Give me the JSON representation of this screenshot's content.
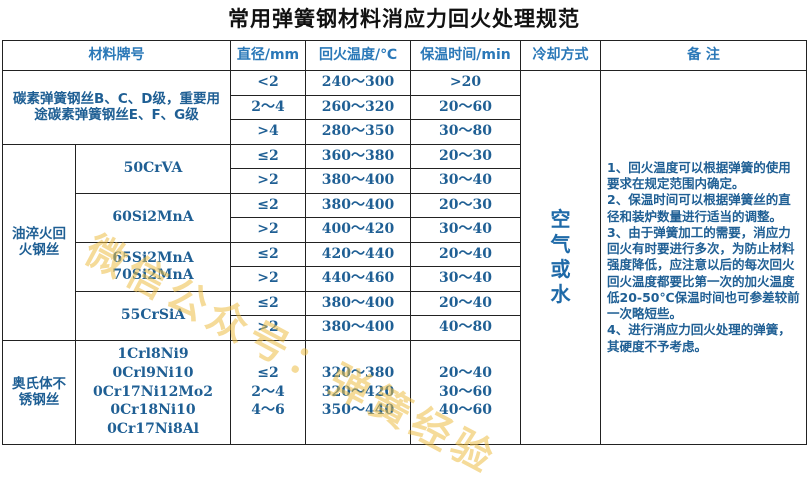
{
  "title": "常用弹簧钢材料消应力回火处理规范",
  "headers": {
    "material": "材料牌号",
    "diameter": "直径/mm",
    "temp": "回火温度/℃",
    "time": "保温时间/min",
    "cooling": "冷却方式",
    "notes": "备 注"
  },
  "carbon": {
    "name": "碳素弹簧钢丝B、C、D级，重要用途碳素弹簧钢丝E、F、G级",
    "rows": [
      {
        "d": "<2",
        "t": "240～300",
        "h": ">20"
      },
      {
        "d": "2～4",
        "t": "260～320",
        "h": "20～60"
      },
      {
        "d": ">4",
        "t": "280～350",
        "h": "30～80"
      }
    ]
  },
  "oil": {
    "name": "油淬火回火钢丝",
    "groups": [
      {
        "grade": "50CrVA",
        "rows": [
          {
            "d": "≤2",
            "t": "360～380",
            "h": "20～30"
          },
          {
            "d": ">2",
            "t": "380～400",
            "h": "30～40"
          }
        ]
      },
      {
        "grade": "60Si2MnA",
        "rows": [
          {
            "d": "≤2",
            "t": "380～400",
            "h": "20～30"
          },
          {
            "d": ">2",
            "t": "400～420",
            "h": "30～40"
          }
        ]
      },
      {
        "grade": "65Si2MnA 70Si2MnA",
        "rows": [
          {
            "d": "≤2",
            "t": "420～440",
            "h": "20～40"
          },
          {
            "d": ">2",
            "t": "440～460",
            "h": "30～40"
          }
        ]
      },
      {
        "grade": "55CrSiA",
        "rows": [
          {
            "d": "≤2",
            "t": "380～400",
            "h": "20～40"
          },
          {
            "d": ">2",
            "t": "380～400",
            "h": "40～80"
          }
        ]
      }
    ]
  },
  "stainless": {
    "name": "奥氏体不锈钢丝",
    "grades": [
      "1Crl8Ni9",
      "0Crl9Ni10",
      "0Cr17Ni12Mo2",
      "0Cr18Ni10",
      "0Cr17Ni8Al"
    ],
    "d": [
      "≤2",
      "2～4",
      "4～6"
    ],
    "t": [
      "320～380",
      "320～420",
      "350～440"
    ],
    "h": [
      "20～40",
      "30～60",
      "40～60"
    ]
  },
  "cooling": [
    "空",
    "气",
    "或",
    "水"
  ],
  "notes": [
    "1、回火温度可以根据弹簧的使用要求在规定范围内确定。",
    "2、保温时间可以根据弹簧丝的直径和装炉数量进行适当的调整。",
    "3、由于弹簧加工的需要，消应力回火有时要进行多次，为防止材料强度降低，应注意以后的每次回火回火温度都要比第一次的加火温度低20-50℃保温时间也可参差较前一次略短些。",
    "4、进行消应力回火处理的弹簧，其硬度不予考虑。"
  ],
  "watermark": "微信公众号：弹簧经验",
  "colors": {
    "text": "#1f5f94",
    "header": "#2a78b8",
    "watermark": "#ecbe46"
  }
}
